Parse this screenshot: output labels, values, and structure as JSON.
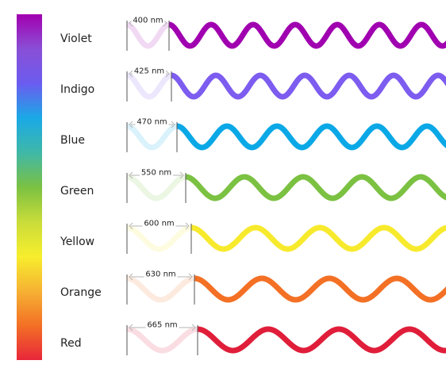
{
  "spectrum_bar": {
    "stops": [
      "#a300b0",
      "#8a4fd6",
      "#6b5cf0",
      "#1aa9e6",
      "#3fb8a8",
      "#7bc142",
      "#c9dc3a",
      "#f7ee2d",
      "#f6b233",
      "#f37025",
      "#e8263a"
    ]
  },
  "rows": [
    {
      "name": "Violet",
      "wavelength": "400 nm",
      "color": "#a000b0"
    },
    {
      "name": "Indigo",
      "wavelength": "425 nm",
      "color": "#7d5cf0"
    },
    {
      "name": "Blue",
      "wavelength": "470 nm",
      "color": "#0aa8e6"
    },
    {
      "name": "Green",
      "wavelength": "550 nm",
      "color": "#7bc142"
    },
    {
      "name": "Yellow",
      "wavelength": "600 nm",
      "color": "#f7ea2d"
    },
    {
      "name": "Orange",
      "wavelength": "630 nm",
      "color": "#f37025"
    },
    {
      "name": "Red",
      "wavelength": "665 nm",
      "color": "#e01e3a"
    }
  ]
}
